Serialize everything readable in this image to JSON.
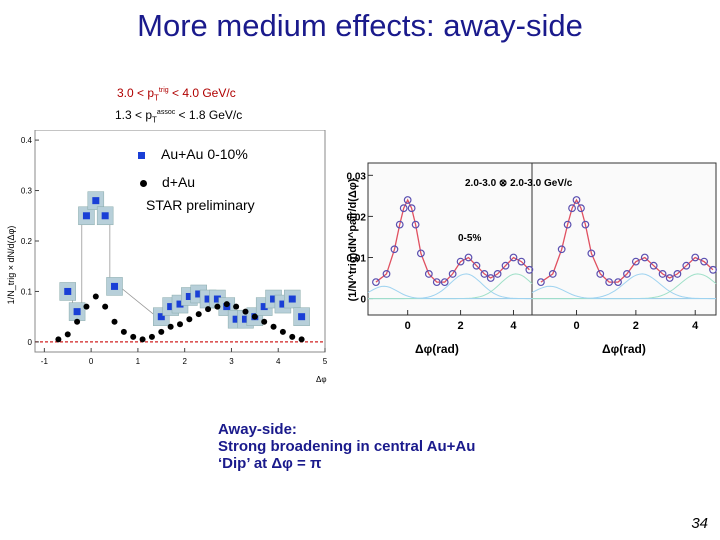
{
  "slide": {
    "title": "More medium effects: away-side",
    "page_number": "34"
  },
  "conditions": {
    "line1": {
      "base": "3.0 < p",
      "sub": "T",
      "sup": "trig",
      "rest": " < 4.0 GeV/c"
    },
    "line2": {
      "base": "1.3 < p",
      "sub": "T",
      "sup": "assoc",
      "rest": " < 1.8 GeV/c"
    }
  },
  "legend": {
    "auau": "Au+Au 0-10%",
    "dau": "d+Au",
    "note": "STAR preliminary"
  },
  "text_block": {
    "line1": "Away-side:",
    "line2": "Strong broadening in central Au+Au",
    "line3": "‘Dip’ at Δφ = π"
  },
  "chart_data": [
    {
      "type": "scatter",
      "ylabel": "1/N_trig × dN/d(Δφ)",
      "xlabel": "Δφ",
      "x_ticks": [
        "-1",
        "0",
        "1",
        "2",
        "3",
        "4",
        "5"
      ],
      "y_ticks": [
        "0",
        "0.1",
        "0.2",
        "0.3",
        "0.4"
      ],
      "xlim": [
        -1.2,
        5.0
      ],
      "ylim": [
        -0.02,
        0.42
      ],
      "series": [
        {
          "name": "Au+Au 0-10%",
          "color": "#1a3fd6",
          "x": [
            -0.5,
            -0.3,
            -0.1,
            0.1,
            0.3,
            0.5,
            1.5,
            1.7,
            1.9,
            2.1,
            2.3,
            2.5,
            2.7,
            2.9,
            3.1,
            3.3,
            3.5,
            3.7,
            3.9,
            4.1,
            4.3,
            4.5
          ],
          "y": [
            0.1,
            0.06,
            0.25,
            0.28,
            0.25,
            0.11,
            0.05,
            0.07,
            0.075,
            0.09,
            0.095,
            0.085,
            0.085,
            0.07,
            0.045,
            0.045,
            0.05,
            0.07,
            0.085,
            0.075,
            0.085,
            0.05
          ]
        },
        {
          "name": "d+Au",
          "color": "#000000",
          "x": [
            -0.7,
            -0.5,
            -0.3,
            -0.1,
            0.1,
            0.3,
            0.5,
            0.7,
            0.9,
            1.1,
            1.3,
            1.5,
            1.7,
            1.9,
            2.1,
            2.3,
            2.5,
            2.7,
            2.9,
            3.1,
            3.3,
            3.5,
            3.7,
            3.9,
            4.1,
            4.3,
            4.5
          ],
          "y": [
            0.005,
            0.015,
            0.04,
            0.07,
            0.09,
            0.07,
            0.04,
            0.02,
            0.01,
            0.005,
            0.01,
            0.02,
            0.03,
            0.035,
            0.045,
            0.055,
            0.065,
            0.07,
            0.075,
            0.07,
            0.06,
            0.05,
            0.04,
            0.03,
            0.02,
            0.01,
            0.005
          ]
        }
      ]
    },
    {
      "type": "line",
      "ylabel": "(1/N^trig)dN^pair/d(Δφ)",
      "xlabel": "Δφ(rad)",
      "annotation_top": "2.0-3.0 ⊗ 2.0-3.0 GeV/c",
      "annotation_centrality": "0-5%",
      "panels": [
        {
          "x_ticks": [
            "0",
            "2",
            "4"
          ],
          "y_ticks": [
            "0",
            "0.01",
            "0.02",
            "0.03"
          ],
          "xlim": [
            -1.5,
            4.7
          ],
          "ylim": [
            -0.004,
            0.033
          ],
          "x": [
            -1.2,
            -0.8,
            -0.5,
            -0.3,
            -0.15,
            0.0,
            0.15,
            0.3,
            0.5,
            0.8,
            1.1,
            1.4,
            1.7,
            2.0,
            2.3,
            2.6,
            2.9,
            3.14,
            3.4,
            3.7,
            4.0,
            4.3,
            4.6
          ],
          "y": [
            0.004,
            0.006,
            0.012,
            0.018,
            0.022,
            0.024,
            0.022,
            0.018,
            0.011,
            0.006,
            0.004,
            0.004,
            0.006,
            0.009,
            0.01,
            0.008,
            0.006,
            0.005,
            0.006,
            0.008,
            0.01,
            0.009,
            0.007
          ]
        },
        {
          "x_ticks": [
            "0",
            "2",
            "4"
          ],
          "xlim": [
            -1.5,
            4.7
          ],
          "ylim": [
            -0.004,
            0.033
          ],
          "x": [
            -1.2,
            -0.8,
            -0.5,
            -0.3,
            -0.15,
            0.0,
            0.15,
            0.3,
            0.5,
            0.8,
            1.1,
            1.4,
            1.7,
            2.0,
            2.3,
            2.6,
            2.9,
            3.14,
            3.4,
            3.7,
            4.0,
            4.3,
            4.6
          ],
          "y": [
            0.004,
            0.006,
            0.012,
            0.018,
            0.022,
            0.024,
            0.022,
            0.018,
            0.011,
            0.006,
            0.004,
            0.004,
            0.006,
            0.009,
            0.01,
            0.008,
            0.006,
            0.005,
            0.006,
            0.008,
            0.01,
            0.009,
            0.007
          ]
        }
      ]
    }
  ]
}
